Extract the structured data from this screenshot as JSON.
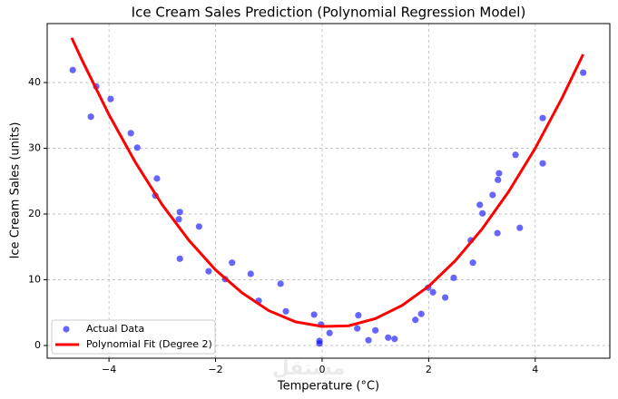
{
  "chart_data": {
    "type": "scatter",
    "title": "Ice Cream Sales Prediction (Polynomial Regression Model)",
    "x_label": "Temperature (°C)",
    "y_label": "Ice Cream Sales (units)",
    "watermark": "مستقل",
    "xlim": [
      -5.16,
      5.4
    ],
    "ylim": [
      -1.93,
      48.97
    ],
    "xticks": [
      {
        "value": -4,
        "label": "−4"
      },
      {
        "value": -2,
        "label": "−2"
      },
      0,
      2,
      4
    ],
    "yticks": [
      0,
      10,
      20,
      30,
      40
    ],
    "grid": true,
    "legend_position": "lower-left",
    "series": [
      {
        "name": "Actual Data",
        "type": "scatter",
        "color": "#0000ff",
        "x": [
          -4.68,
          -4.34,
          -4.24,
          -3.97,
          -3.59,
          -3.47,
          -3.1,
          -3.13,
          -2.67,
          -2.69,
          -2.31,
          -2.67,
          -2.13,
          -1.82,
          -1.69,
          -1.34,
          -1.19,
          -0.78,
          -0.68,
          -0.15,
          -0.05,
          -0.05,
          -0.02,
          0.14,
          0.68,
          0.66,
          0.87,
          1.0,
          1.24,
          1.36,
          1.75,
          1.86,
          1.99,
          2.08,
          2.31,
          2.47,
          2.79,
          2.83,
          2.96,
          3.01,
          3.2,
          3.29,
          3.32,
          3.3,
          3.63,
          3.71,
          4.14,
          4.14,
          4.9
        ],
        "values": [
          41.9,
          34.8,
          39.4,
          37.5,
          32.3,
          30.1,
          25.4,
          22.8,
          20.3,
          19.2,
          18.1,
          13.2,
          11.3,
          10.1,
          12.6,
          10.9,
          6.8,
          9.4,
          5.2,
          4.7,
          0.7,
          0.3,
          3.2,
          1.9,
          4.6,
          2.6,
          0.8,
          2.3,
          1.2,
          1.0,
          3.9,
          4.8,
          8.8,
          8.1,
          7.3,
          10.3,
          16.0,
          12.6,
          21.4,
          20.1,
          22.9,
          17.1,
          26.2,
          25.2,
          29.0,
          17.9,
          34.6,
          27.7,
          41.5
        ]
      },
      {
        "name": "Polynomial Fit (Degree 2)",
        "type": "line",
        "color": "#ff0000",
        "x": [
          -4.7,
          -4.5,
          -4,
          -3.5,
          -3,
          -2.5,
          -2,
          -1.5,
          -1,
          -0.5,
          0,
          0.5,
          1,
          1.5,
          2,
          2.5,
          3,
          3.5,
          4,
          4.5,
          4.9
        ],
        "values": [
          46.8,
          43.3,
          35.1,
          27.8,
          21.4,
          16.0,
          11.5,
          8.0,
          5.3,
          3.6,
          2.9,
          3.0,
          4.1,
          6.1,
          9.0,
          12.9,
          17.7,
          23.4,
          30.0,
          37.6,
          44.3
        ]
      }
    ]
  }
}
